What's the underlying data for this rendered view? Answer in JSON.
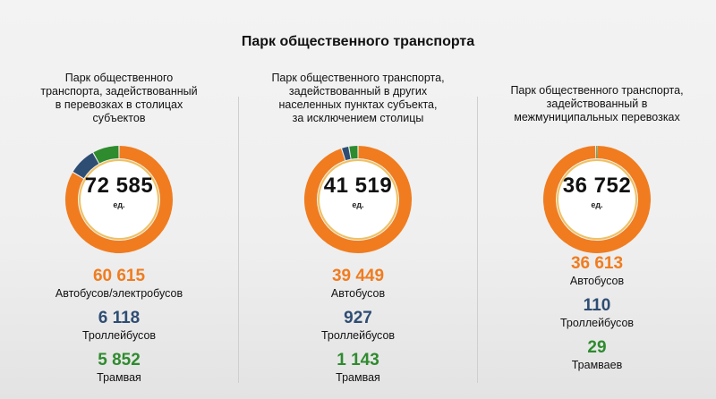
{
  "title": "Парк общественного транспорта",
  "colors": {
    "bus": "#f07c1f",
    "trolley": "#2e4d73",
    "tram": "#2e8b2e",
    "track": "#f0c060"
  },
  "total_unit": "ед.",
  "columns": [
    {
      "desc_lines": [
        "Парк общественного",
        "транспорта, задействованный",
        "в перевозках в столицах",
        "субъектов"
      ],
      "total": "72 585",
      "stats": [
        {
          "value": "60 615",
          "label": "Автобусов/электробусов"
        },
        {
          "value": "6 118",
          "label": "Троллейбусов"
        },
        {
          "value": "5 852",
          "label": "Трамвая"
        }
      ]
    },
    {
      "desc_lines": [
        "Парк общественного транспорта,",
        "задействованный в других",
        "населенных пунктах субъекта,",
        "за исключением столицы"
      ],
      "total": "41 519",
      "stats": [
        {
          "value": "39 449",
          "label": "Автобусов"
        },
        {
          "value": "927",
          "label": "Троллейбусов"
        },
        {
          "value": "1 143",
          "label": "Трамвая"
        }
      ]
    },
    {
      "desc_lines": [
        "Парк общественного транспорта,",
        "задействованный в",
        "межмуниципальных перевозках"
      ],
      "total": "36 752",
      "stats": [
        {
          "value": "36 613",
          "label": "Автобусов"
        },
        {
          "value": "110",
          "label": "Троллейбусов"
        },
        {
          "value": "29",
          "label": "Трамваев"
        }
      ]
    }
  ],
  "chart_data": [
    {
      "type": "pie",
      "categories": [
        "Автобусов/электробусов",
        "Троллейбусов",
        "Трамвая"
      ],
      "values": [
        60615,
        6118,
        5852
      ],
      "total": 72585
    },
    {
      "type": "pie",
      "categories": [
        "Автобусов",
        "Троллейбусов",
        "Трамвая"
      ],
      "values": [
        39449,
        927,
        1143
      ],
      "total": 41519
    },
    {
      "type": "pie",
      "categories": [
        "Автобусов",
        "Троллейбусов",
        "Трамваев"
      ],
      "values": [
        36613,
        110,
        29
      ],
      "total": 36752
    }
  ]
}
